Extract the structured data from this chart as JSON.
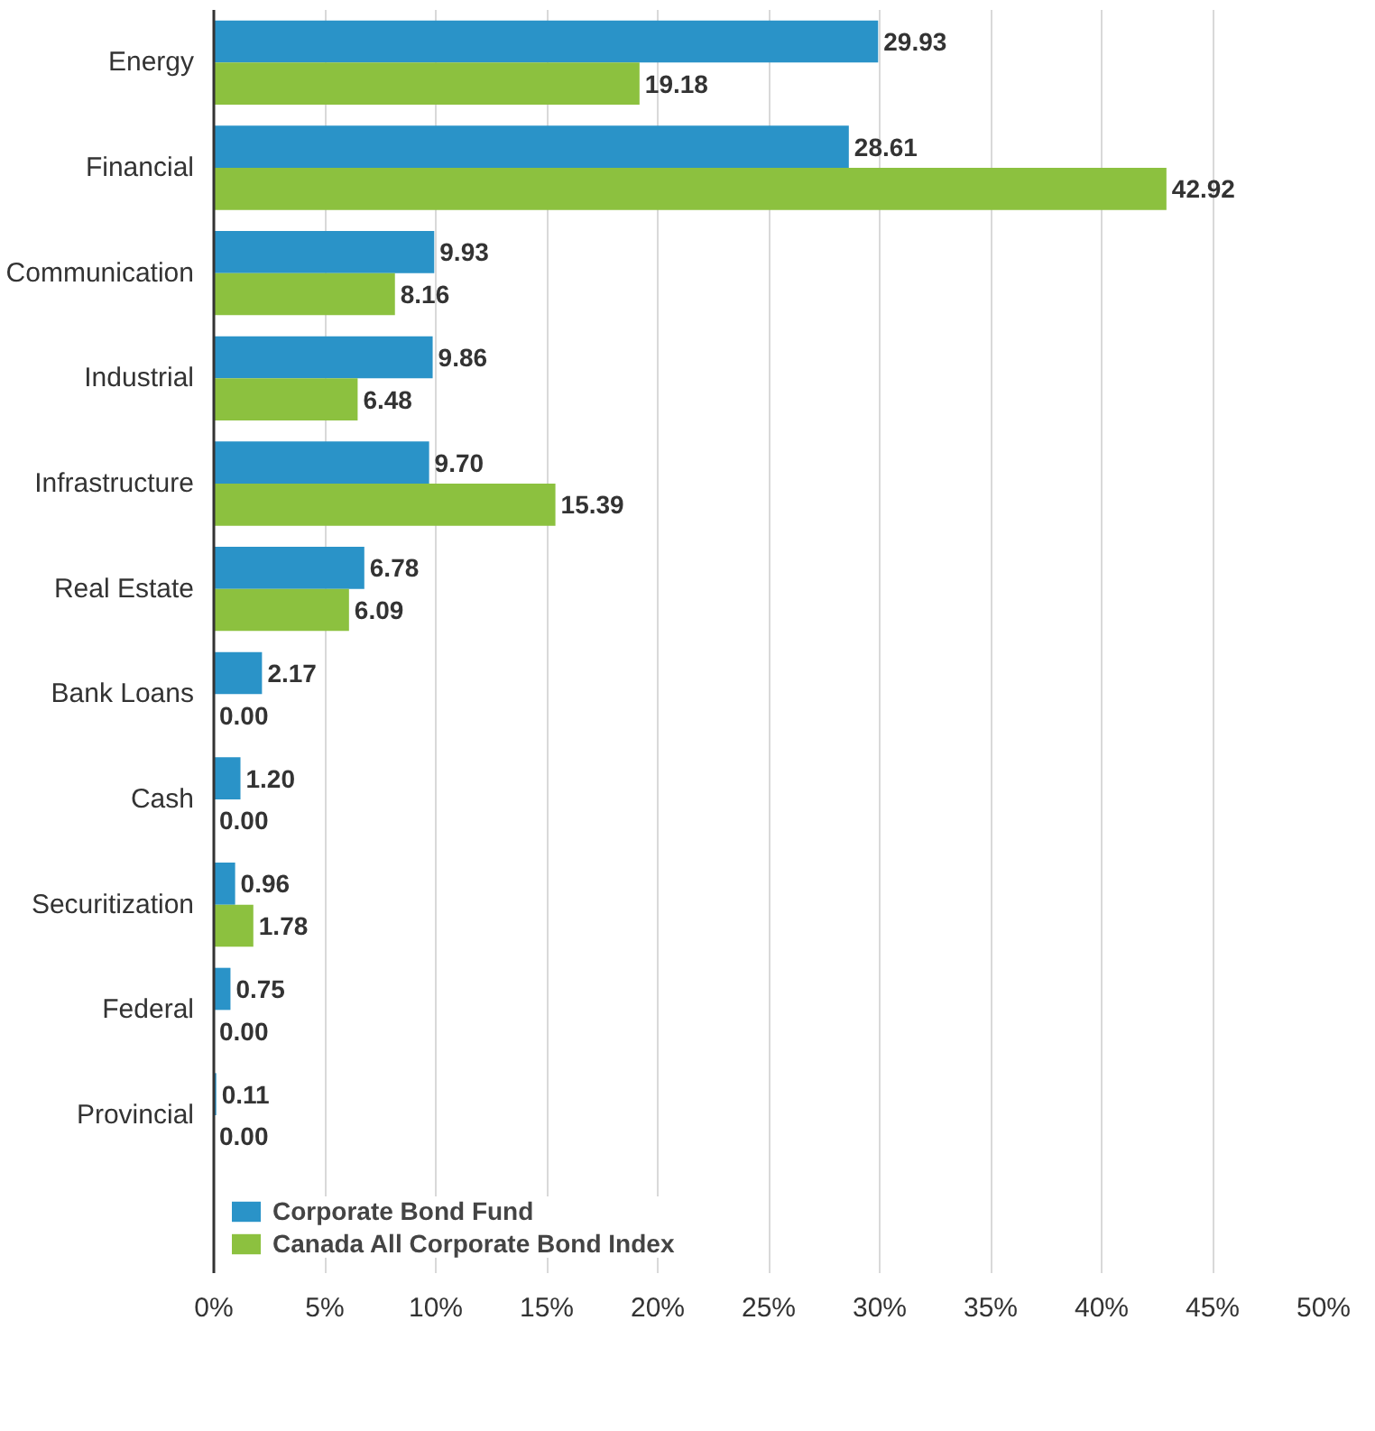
{
  "chart_data": {
    "type": "bar",
    "orientation": "horizontal",
    "categories": [
      "Energy",
      "Financial",
      "Communication",
      "Industrial",
      "Infrastructure",
      "Real Estate",
      "Bank Loans",
      "Cash",
      "Securitization",
      "Federal",
      "Provincial"
    ],
    "series": [
      {
        "name": "Corporate Bond Fund",
        "color": "#2a93c8",
        "values": [
          29.93,
          28.61,
          9.93,
          9.86,
          9.7,
          6.78,
          2.17,
          1.2,
          0.96,
          0.75,
          0.11
        ],
        "value_labels": [
          "29.93",
          "28.61",
          "9.93",
          "9.86",
          "9.70",
          "6.78",
          "2.17",
          "1.20",
          "0.96",
          "0.75",
          "0.11"
        ]
      },
      {
        "name": "Canada All Corporate Bond Index",
        "color": "#8cc13f",
        "values": [
          19.18,
          42.92,
          8.16,
          6.48,
          15.39,
          6.09,
          0.0,
          0.0,
          1.78,
          0.0,
          0.0
        ],
        "value_labels": [
          "19.18",
          "42.92",
          "8.16",
          "6.48",
          "15.39",
          "6.09",
          "0.00",
          "0.00",
          "1.78",
          "0.00",
          "0.00"
        ]
      }
    ],
    "xlim": [
      0,
      50
    ],
    "xticks": [
      {
        "value": 0,
        "label": "0%"
      },
      {
        "value": 5,
        "label": "5%"
      },
      {
        "value": 10,
        "label": "10%"
      },
      {
        "value": 15,
        "label": "15%"
      },
      {
        "value": 20,
        "label": "20%"
      },
      {
        "value": 25,
        "label": "25%"
      },
      {
        "value": 30,
        "label": "30%"
      },
      {
        "value": 35,
        "label": "35%"
      },
      {
        "value": 40,
        "label": "40%"
      },
      {
        "value": 45,
        "label": "45%"
      },
      {
        "value": 50,
        "label": "50%"
      }
    ],
    "grid": "x",
    "legend": "bottom left"
  }
}
